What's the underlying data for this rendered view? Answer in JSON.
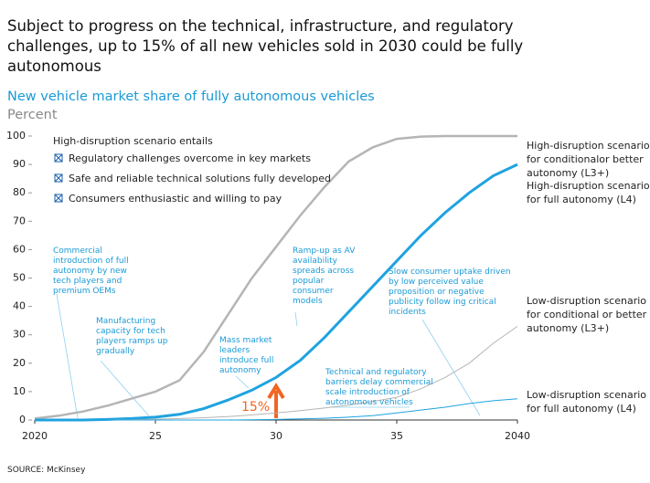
{
  "headline": "Subject to progress on the technical, infrastructure, and regulatory challenges, up to 15% of all new vehicles sold in 2030 could   be fully autonomous",
  "chart_data": {
    "type": "line",
    "title": "New vehicle market share of fully autonomous vehicles",
    "subtitle": "Percent",
    "x": [
      2020,
      2021,
      2022,
      2023,
      2024,
      2025,
      2026,
      2027,
      2028,
      2029,
      2030,
      2031,
      2032,
      2033,
      2034,
      2035,
      2036,
      2037,
      2038,
      2039,
      2040
    ],
    "xlim": [
      2020,
      2040
    ],
    "xticks": [
      2020,
      {
        "value": 2025,
        "label": "25"
      },
      {
        "value": 2030,
        "label": "30"
      },
      {
        "value": 2035,
        "label": "35"
      },
      2040
    ],
    "ylim": [
      0,
      100
    ],
    "yticks": [
      0,
      10,
      20,
      30,
      40,
      50,
      60,
      70,
      80,
      90,
      100
    ],
    "grid": false,
    "series": [
      {
        "name": "High-disruption scenario for conditionalor better autonomy (L3+)",
        "color": "#b5b5b5",
        "line_width": 2.5,
        "values": [
          0.5,
          1.5,
          3,
          5,
          7.5,
          10,
          14,
          24,
          37,
          50,
          61,
          72,
          82,
          91,
          96,
          99,
          99.8,
          100,
          100,
          100,
          100
        ]
      },
      {
        "name": "High-disruption scenario for  full autonomy (L4)",
        "color": "#1fa3e0",
        "line_width": 3,
        "values": [
          0,
          0,
          0,
          0.2,
          0.5,
          1,
          2,
          4,
          7,
          10.5,
          15,
          21,
          29,
          38,
          47,
          56,
          65,
          73,
          80,
          86,
          90
        ]
      },
      {
        "name": "Low-disruption scenario for  conditional or better autonomy (L3+)",
        "color": "#b5b5b5",
        "line_width": 1,
        "values": [
          0,
          0,
          0,
          0,
          0.1,
          0.3,
          0.5,
          0.8,
          1.2,
          1.8,
          2.5,
          3.3,
          4.2,
          5.2,
          6.5,
          8,
          11,
          15,
          20,
          27,
          33
        ]
      },
      {
        "name": "Low-disruption scenario for  full autonomy (L4)",
        "color": "#1fa3e0",
        "line_width": 1,
        "values": [
          0,
          0,
          0,
          0,
          0,
          0,
          0,
          0,
          0,
          0.1,
          0.2,
          0.4,
          0.6,
          1,
          1.5,
          2.5,
          3.5,
          4.5,
          5.8,
          6.8,
          7.5
        ]
      }
    ],
    "scenario_box": {
      "heading": "High-disruption scenario entails",
      "items": [
        "Regulatory challenges overcome in key markets",
        "Safe and reliable technical solutions fully developed",
        "Consumers enthusiastic and willing to pay"
      ]
    },
    "annotations": [
      "Commercial introduction of full autonomy by new tech players and premium OEMs",
      "Manufacturing capacity for tech players ramps up gradually",
      "Mass market leaders introduce full autonomy",
      "Ramp-up as AV availability spreads across popular consumer models",
      "Technical and regulatory barriers delay commercial scale introduction of autonomous vehicles",
      "Slow consumer uptake driven by low perceived value proposition or negative publicity follow ing critical incidents",
      "15%"
    ]
  },
  "source": "SOURCE: McKinsey"
}
